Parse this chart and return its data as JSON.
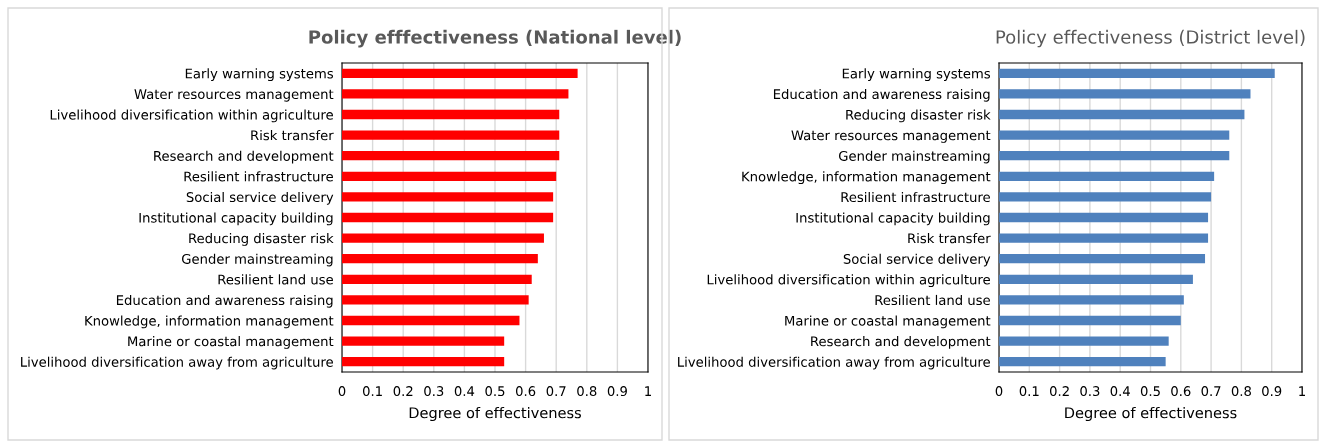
{
  "chart_data": [
    {
      "type": "bar",
      "orientation": "horizontal",
      "title": "Policy efffectiveness (National level)",
      "xlabel": "Degree of effectiveness",
      "categories": [
        "Early warning systems",
        "Water resources management",
        "Livelihood diversification within agriculture",
        "Risk transfer",
        "Research and development",
        "Resilient infrastructure",
        "Social service delivery",
        "Institutional capacity building",
        "Reducing disaster risk",
        "Gender mainstreaming",
        "Resilient land use",
        "Education and awareness raising",
        "Knowledge, information management",
        "Marine or coastal management",
        "Livelihood diversification away from agriculture"
      ],
      "values": [
        0.77,
        0.74,
        0.71,
        0.71,
        0.71,
        0.7,
        0.69,
        0.69,
        0.66,
        0.64,
        0.62,
        0.61,
        0.58,
        0.53,
        0.53
      ],
      "color": "#ff0000",
      "xlim": [
        0,
        1
      ],
      "xticks": [
        0,
        0.1,
        0.2,
        0.3,
        0.4,
        0.5,
        0.6,
        0.7,
        0.8,
        0.9,
        1
      ],
      "grid": "x"
    },
    {
      "type": "bar",
      "orientation": "horizontal",
      "title": "Policy effectiveness (District level)",
      "xlabel": "Degree of effectiveness",
      "categories": [
        "Early warning systems",
        "Education and awareness raising",
        "Reducing disaster risk",
        "Water resources management",
        "Gender mainstreaming",
        "Knowledge, information management",
        "Resilient infrastructure",
        "Institutional capacity building",
        "Risk transfer",
        "Social service delivery",
        "Livelihood diversification within agriculture",
        "Resilient land use",
        "Marine or coastal management",
        "Research and development",
        "Livelihood diversification away from agriculture"
      ],
      "values": [
        0.91,
        0.83,
        0.81,
        0.76,
        0.76,
        0.71,
        0.7,
        0.69,
        0.69,
        0.68,
        0.64,
        0.61,
        0.6,
        0.56,
        0.55
      ],
      "color": "#4f81bd",
      "xlim": [
        0,
        1
      ],
      "xticks": [
        0,
        0.1,
        0.2,
        0.3,
        0.4,
        0.5,
        0.6,
        0.7,
        0.8,
        0.9,
        1
      ],
      "grid": "x"
    }
  ]
}
